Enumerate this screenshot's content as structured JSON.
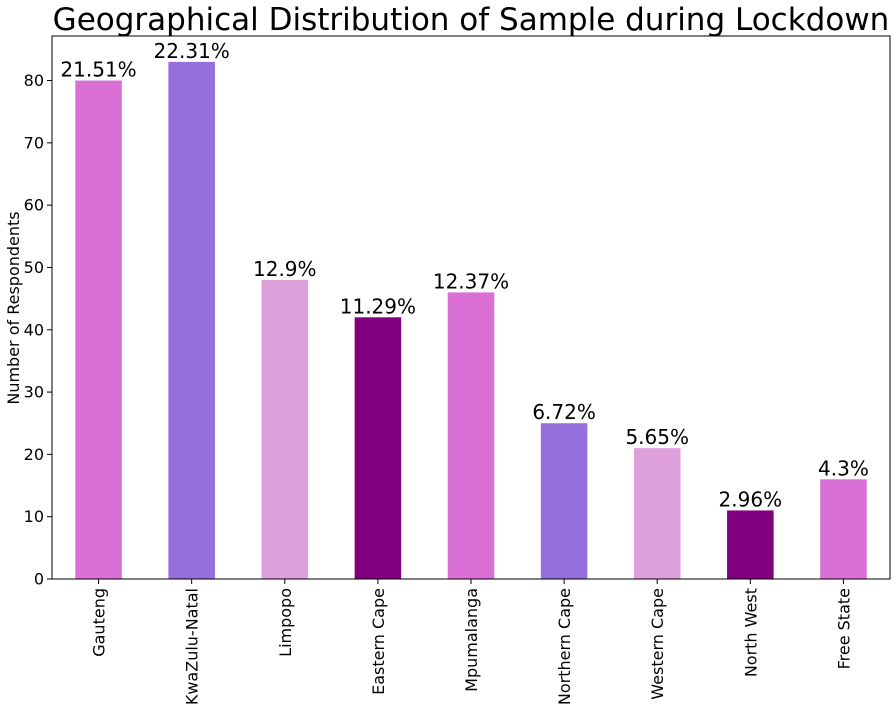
{
  "chart_data": {
    "type": "bar",
    "title": "Geographical Distribution of Sample during Lockdown",
    "xlabel": "",
    "ylabel": "Number of Respondents",
    "categories": [
      "Gauteng",
      "KwaZulu-Natal",
      "Limpopo",
      "Eastern Cape",
      "Mpumalanga",
      "Northern Cape",
      "Western Cape",
      "North West",
      "Free State"
    ],
    "values": [
      80,
      83,
      48,
      42,
      46,
      25,
      21,
      11,
      16
    ],
    "data_labels": [
      "21.51%",
      "22.31%",
      "12.9%",
      "11.29%",
      "12.37%",
      "6.72%",
      "5.65%",
      "2.96%",
      "4.3%"
    ],
    "colors": [
      "#da70d6",
      "#9370db",
      "#dda0dd",
      "#800080",
      "#da70d6",
      "#9370db",
      "#dda0dd",
      "#800080",
      "#da70d6"
    ],
    "ylim": [
      0,
      87.15
    ],
    "yticks": [
      0,
      10,
      20,
      30,
      40,
      50,
      60,
      70,
      80
    ],
    "grid": false,
    "legend": "none"
  }
}
